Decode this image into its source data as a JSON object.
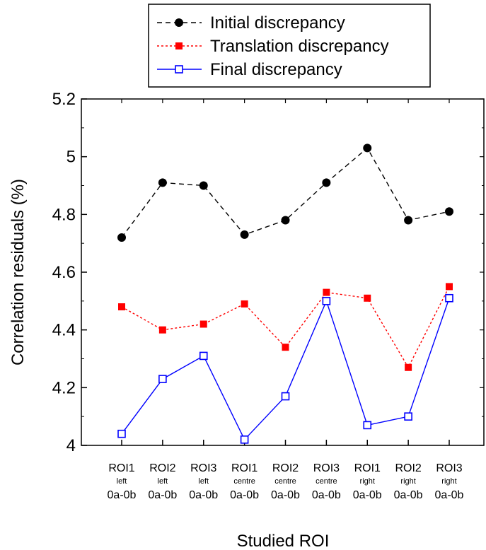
{
  "chart_data": {
    "type": "line",
    "categories": [
      {
        "roi": "ROI1",
        "position": "left",
        "pair": "0a-0b"
      },
      {
        "roi": "ROI2",
        "position": "left",
        "pair": "0a-0b"
      },
      {
        "roi": "ROI3",
        "position": "left",
        "pair": "0a-0b"
      },
      {
        "roi": "ROI1",
        "position": "centre",
        "pair": "0a-0b"
      },
      {
        "roi": "ROI2",
        "position": "centre",
        "pair": "0a-0b"
      },
      {
        "roi": "ROI3",
        "position": "centre",
        "pair": "0a-0b"
      },
      {
        "roi": "ROI1",
        "position": "right",
        "pair": "0a-0b"
      },
      {
        "roi": "ROI2",
        "position": "right",
        "pair": "0a-0b"
      },
      {
        "roi": "ROI3",
        "position": "right",
        "pair": "0a-0b"
      }
    ],
    "series": [
      {
        "name": "Initial discrepancy",
        "color": "#000000",
        "line": "dashed",
        "marker": "filled-circle",
        "values": [
          4.72,
          4.91,
          4.9,
          4.73,
          4.78,
          4.91,
          5.03,
          4.78,
          4.81
        ]
      },
      {
        "name": "Translation discrepancy",
        "color": "#ff0000",
        "line": "dotted",
        "marker": "filled-square",
        "values": [
          4.48,
          4.4,
          4.42,
          4.49,
          4.34,
          4.53,
          4.51,
          4.27,
          4.55
        ]
      },
      {
        "name": "Final discrepancy",
        "color": "#0000ff",
        "line": "solid",
        "marker": "open-square",
        "values": [
          4.04,
          4.23,
          4.31,
          4.02,
          4.17,
          4.5,
          4.07,
          4.1,
          4.51
        ]
      }
    ],
    "xlabel": "Studied ROI",
    "ylabel": "Correlation residuals (%)",
    "ylim": [
      4,
      5.2
    ],
    "yticks": [
      {
        "value": 4,
        "label": "4"
      },
      {
        "value": 4.2,
        "label": "4.2"
      },
      {
        "value": 4.4,
        "label": "4.4"
      },
      {
        "value": 4.6,
        "label": "4.6"
      },
      {
        "value": 4.8,
        "label": "4.8"
      },
      {
        "value": 5,
        "label": "5"
      },
      {
        "value": 5.2,
        "label": "5.2"
      }
    ],
    "legend_position": "top-center, outside plot",
    "grid": false
  }
}
